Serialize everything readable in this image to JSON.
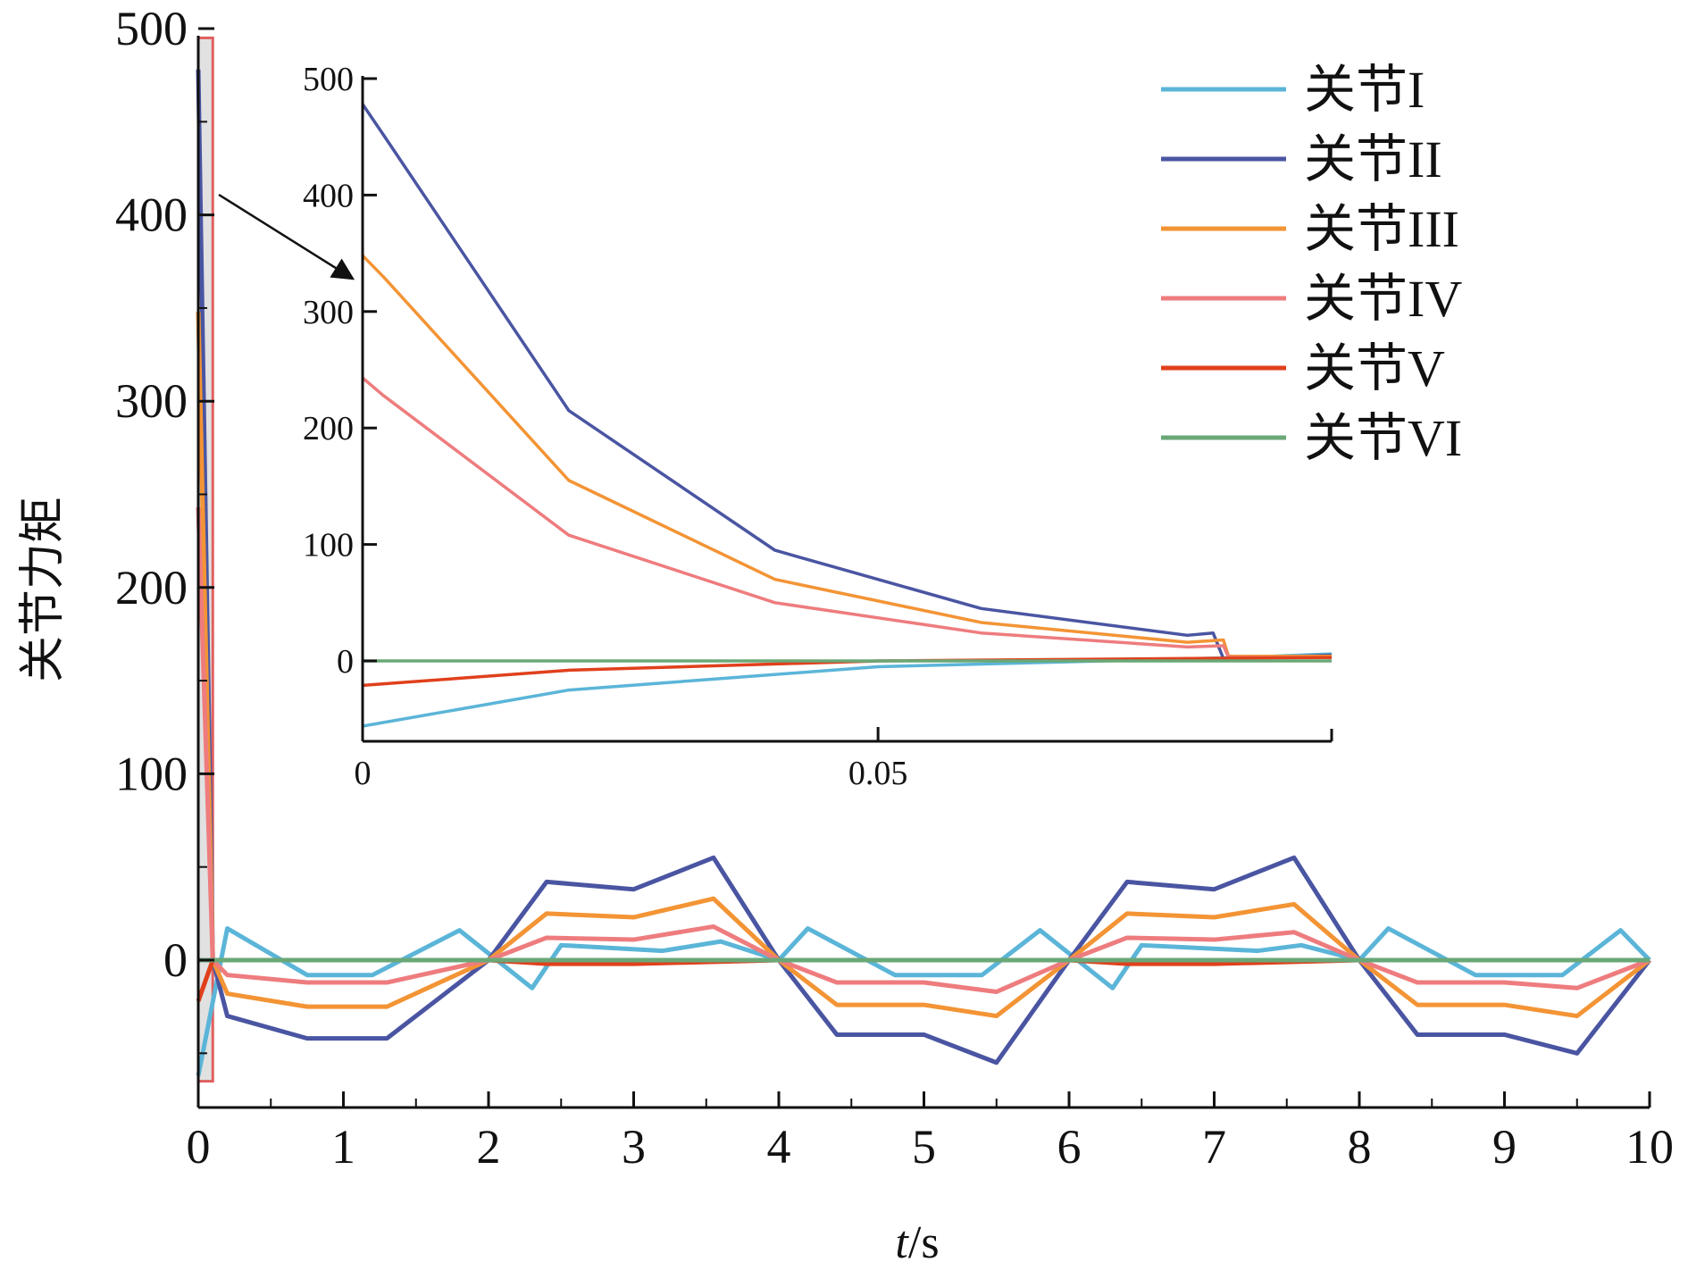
{
  "chart_data": {
    "type": "line",
    "xlabel_italic": "t",
    "xlabel_unit": "/s",
    "ylabel": "关节力矩",
    "xlim": [
      0,
      10
    ],
    "ylim": [
      -80,
      500
    ],
    "xticks": [
      "0",
      "1",
      "2",
      "3",
      "4",
      "5",
      "6",
      "7",
      "8",
      "9",
      "10"
    ],
    "yticks": [
      "0",
      "100",
      "200",
      "300",
      "400",
      "500"
    ],
    "legend_position": "top-right",
    "highlight_region": {
      "x": [
        0,
        0.1
      ],
      "y": [
        -65,
        495
      ],
      "color": "#e06060"
    },
    "series": [
      {
        "name": "关节I",
        "color": "#5bb5d8",
        "values": [
          [
            0,
            -62
          ],
          [
            0.2,
            17
          ],
          [
            0.75,
            -8
          ],
          [
            1.2,
            -8
          ],
          [
            1.8,
            16
          ],
          [
            2.3,
            -15
          ],
          [
            2.5,
            8
          ],
          [
            3.2,
            5
          ],
          [
            3.6,
            10
          ],
          [
            4,
            0
          ],
          [
            4.2,
            17
          ],
          [
            4.8,
            -8
          ],
          [
            5.4,
            -8
          ],
          [
            5.8,
            16
          ],
          [
            6.3,
            -15
          ],
          [
            6.5,
            8
          ],
          [
            7.3,
            5
          ],
          [
            7.6,
            8
          ],
          [
            8,
            0
          ],
          [
            8.2,
            17
          ],
          [
            8.8,
            -8
          ],
          [
            9.4,
            -8
          ],
          [
            9.8,
            16
          ],
          [
            10,
            0
          ]
        ]
      },
      {
        "name": "关节II",
        "color": "#4a55a2",
        "values": [
          [
            0,
            478
          ],
          [
            0.1,
            0
          ],
          [
            0.2,
            -30
          ],
          [
            0.75,
            -42
          ],
          [
            1.3,
            -42
          ],
          [
            2,
            0
          ],
          [
            2.4,
            42
          ],
          [
            3,
            38
          ],
          [
            3.55,
            55
          ],
          [
            4,
            0
          ],
          [
            4.4,
            -40
          ],
          [
            5,
            -40
          ],
          [
            5.5,
            -55
          ],
          [
            6,
            0
          ],
          [
            6.4,
            42
          ],
          [
            7,
            38
          ],
          [
            7.55,
            55
          ],
          [
            8,
            0
          ],
          [
            8.4,
            -40
          ],
          [
            9,
            -40
          ],
          [
            9.5,
            -50
          ],
          [
            10,
            0
          ]
        ]
      },
      {
        "name": "关节III",
        "color": "#f39435",
        "values": [
          [
            0,
            348
          ],
          [
            0.1,
            0
          ],
          [
            0.2,
            -18
          ],
          [
            0.75,
            -25
          ],
          [
            1.3,
            -25
          ],
          [
            2,
            0
          ],
          [
            2.4,
            25
          ],
          [
            3,
            23
          ],
          [
            3.55,
            33
          ],
          [
            4,
            0
          ],
          [
            4.4,
            -24
          ],
          [
            5,
            -24
          ],
          [
            5.5,
            -30
          ],
          [
            6,
            0
          ],
          [
            6.4,
            25
          ],
          [
            7,
            23
          ],
          [
            7.55,
            30
          ],
          [
            8,
            0
          ],
          [
            8.4,
            -24
          ],
          [
            9,
            -24
          ],
          [
            9.5,
            -30
          ],
          [
            10,
            0
          ]
        ]
      },
      {
        "name": "关节IV",
        "color": "#ee7c7e",
        "values": [
          [
            0,
            243
          ],
          [
            0.1,
            0
          ],
          [
            0.2,
            -8
          ],
          [
            0.75,
            -12
          ],
          [
            1.3,
            -12
          ],
          [
            2,
            0
          ],
          [
            2.4,
            12
          ],
          [
            3,
            11
          ],
          [
            3.55,
            18
          ],
          [
            4,
            0
          ],
          [
            4.4,
            -12
          ],
          [
            5,
            -12
          ],
          [
            5.5,
            -17
          ],
          [
            6,
            0
          ],
          [
            6.4,
            12
          ],
          [
            7,
            11
          ],
          [
            7.55,
            15
          ],
          [
            8,
            0
          ],
          [
            8.4,
            -12
          ],
          [
            9,
            -12
          ],
          [
            9.5,
            -15
          ],
          [
            10,
            0
          ]
        ]
      },
      {
        "name": "关节V",
        "color": "#e0401c",
        "values": [
          [
            0,
            -22
          ],
          [
            0.1,
            0
          ],
          [
            2,
            0
          ],
          [
            2.4,
            -2
          ],
          [
            3,
            -2
          ],
          [
            4,
            0
          ],
          [
            6,
            0
          ],
          [
            6.4,
            -2
          ],
          [
            7,
            -2
          ],
          [
            8,
            0
          ],
          [
            10,
            0
          ]
        ]
      },
      {
        "name": "关节VI",
        "color": "#6aa877",
        "values": [
          [
            0,
            0
          ],
          [
            10,
            0
          ]
        ]
      }
    ],
    "inset": {
      "xlim": [
        0,
        0.094
      ],
      "ylim": [
        -70,
        500
      ],
      "xticks": [
        "0",
        "0.05"
      ],
      "yticks": [
        "0",
        "100",
        "200",
        "300",
        "400",
        "500"
      ],
      "series": [
        {
          "name": "关节I",
          "values": [
            [
              0,
              -56
            ],
            [
              0.02,
              -25
            ],
            [
              0.05,
              -5
            ],
            [
              0.085,
              3
            ],
            [
              0.094,
              6
            ]
          ]
        },
        {
          "name": "关节II",
          "values": [
            [
              0,
              478
            ],
            [
              0.002,
              452
            ],
            [
              0.02,
              215
            ],
            [
              0.04,
              95
            ],
            [
              0.06,
              45
            ],
            [
              0.08,
              22
            ],
            [
              0.0825,
              24
            ],
            [
              0.0835,
              2
            ],
            [
              0.094,
              5
            ]
          ]
        },
        {
          "name": "关节III",
          "values": [
            [
              0,
              348
            ],
            [
              0.002,
              330
            ],
            [
              0.02,
              155
            ],
            [
              0.04,
              70
            ],
            [
              0.06,
              33
            ],
            [
              0.08,
              16
            ],
            [
              0.0835,
              18
            ],
            [
              0.084,
              4
            ],
            [
              0.094,
              4
            ]
          ]
        },
        {
          "name": "关节IV",
          "values": [
            [
              0,
              243
            ],
            [
              0.002,
              228
            ],
            [
              0.02,
              108
            ],
            [
              0.04,
              50
            ],
            [
              0.06,
              24
            ],
            [
              0.08,
              12
            ],
            [
              0.0835,
              13
            ],
            [
              0.084,
              3
            ],
            [
              0.094,
              3
            ]
          ]
        },
        {
          "name": "关节V",
          "values": [
            [
              0,
              -21
            ],
            [
              0.02,
              -8
            ],
            [
              0.05,
              0
            ],
            [
              0.094,
              3
            ]
          ]
        },
        {
          "name": "关节VI",
          "values": [
            [
              0,
              0
            ],
            [
              0.094,
              0
            ]
          ]
        }
      ]
    }
  }
}
